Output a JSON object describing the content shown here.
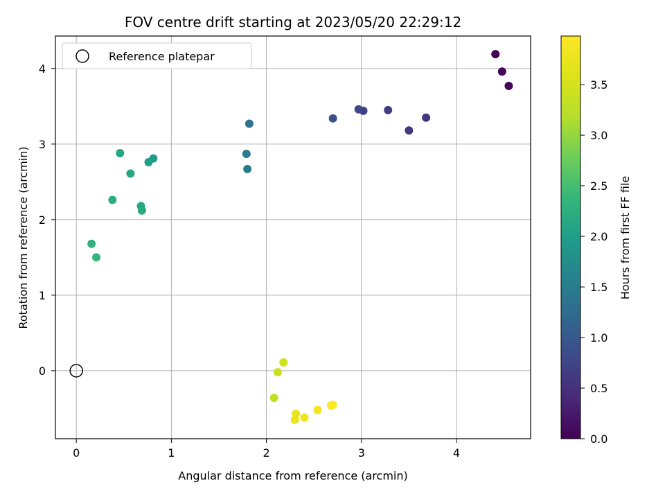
{
  "chart_data": {
    "type": "scatter",
    "title": "FOV centre drift starting at 2023/05/20 22:29:12",
    "xlabel": "Angular distance from reference (arcmin)",
    "ylabel": "Rotation from reference (arcmin)",
    "xlim": [
      -0.22,
      4.78
    ],
    "ylim": [
      -0.9,
      4.43
    ],
    "xticks": [
      0,
      1,
      2,
      3,
      4
    ],
    "yticks": [
      0,
      1,
      2,
      3,
      4
    ],
    "grid": true,
    "legend": {
      "position": "top-left",
      "entries": [
        {
          "label": "Reference platepar",
          "marker": "open-circle",
          "color": "#000000"
        }
      ]
    },
    "reference_point": {
      "x": 0,
      "y": 0
    },
    "colorbar": {
      "label": "Hours from first FF file",
      "colormap": "viridis",
      "range": [
        0.0,
        3.98
      ],
      "ticks": [
        0.0,
        0.5,
        1.0,
        1.5,
        2.0,
        2.5,
        3.0,
        3.5
      ],
      "tick_labels": [
        "0.0",
        "0.5",
        "1.0",
        "1.5",
        "2.0",
        "2.5",
        "3.0",
        "3.5"
      ]
    },
    "points": [
      {
        "x": 4.41,
        "y": 4.19,
        "hours": 0.0
      },
      {
        "x": 4.48,
        "y": 3.96,
        "hours": 0.03
      },
      {
        "x": 4.55,
        "y": 3.77,
        "hours": 0.05
      },
      {
        "x": 3.68,
        "y": 3.35,
        "hours": 0.55
      },
      {
        "x": 3.5,
        "y": 3.18,
        "hours": 0.6
      },
      {
        "x": 3.28,
        "y": 3.45,
        "hours": 0.65
      },
      {
        "x": 3.02,
        "y": 3.44,
        "hours": 0.7
      },
      {
        "x": 2.97,
        "y": 3.46,
        "hours": 0.75
      },
      {
        "x": 2.7,
        "y": 3.34,
        "hours": 0.9
      },
      {
        "x": 1.82,
        "y": 3.27,
        "hours": 1.35
      },
      {
        "x": 1.79,
        "y": 2.87,
        "hours": 1.45
      },
      {
        "x": 1.8,
        "y": 2.67,
        "hours": 1.5
      },
      {
        "x": 0.81,
        "y": 2.81,
        "hours": 1.95
      },
      {
        "x": 0.76,
        "y": 2.76,
        "hours": 2.0
      },
      {
        "x": 0.46,
        "y": 2.88,
        "hours": 2.1
      },
      {
        "x": 0.57,
        "y": 2.61,
        "hours": 2.12
      },
      {
        "x": 0.68,
        "y": 2.18,
        "hours": 2.15
      },
      {
        "x": 0.69,
        "y": 2.12,
        "hours": 2.18
      },
      {
        "x": 0.38,
        "y": 2.26,
        "hours": 2.25
      },
      {
        "x": 0.16,
        "y": 1.68,
        "hours": 2.3
      },
      {
        "x": 0.21,
        "y": 1.5,
        "hours": 2.35
      },
      {
        "x": 2.08,
        "y": -0.36,
        "hours": 3.3
      },
      {
        "x": 2.12,
        "y": -0.02,
        "hours": 3.4
      },
      {
        "x": 2.18,
        "y": 0.11,
        "hours": 3.45
      },
      {
        "x": 2.31,
        "y": -0.57,
        "hours": 3.7
      },
      {
        "x": 2.3,
        "y": -0.65,
        "hours": 3.75
      },
      {
        "x": 2.4,
        "y": -0.62,
        "hours": 3.78
      },
      {
        "x": 2.54,
        "y": -0.52,
        "hours": 3.85
      },
      {
        "x": 2.68,
        "y": -0.46,
        "hours": 3.92
      },
      {
        "x": 2.7,
        "y": -0.45,
        "hours": 3.98
      }
    ]
  }
}
